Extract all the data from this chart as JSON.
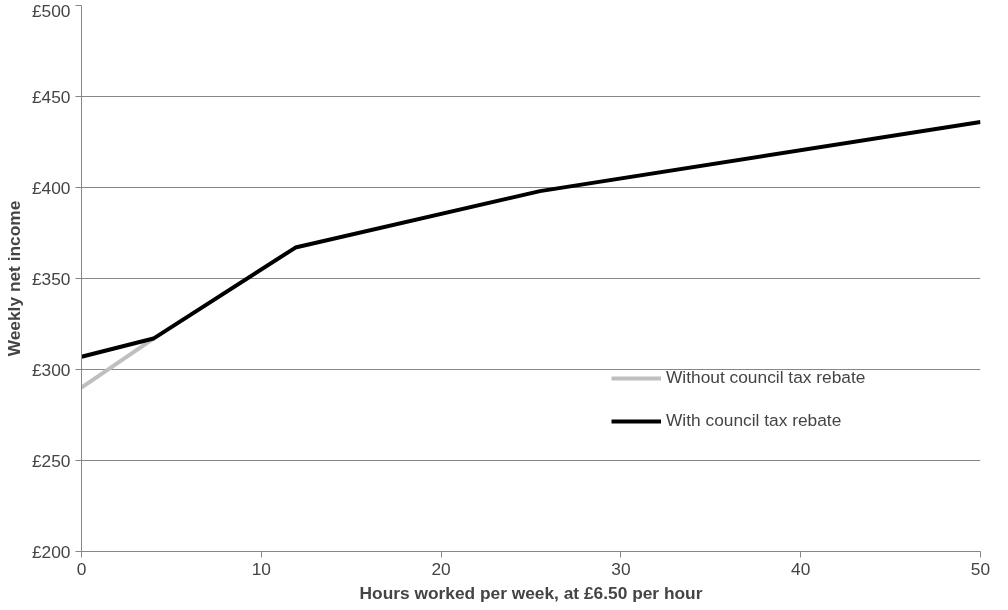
{
  "chart_data": {
    "type": "line",
    "xlabel": "Hours worked per week, at £6.50 per hour",
    "ylabel": "Weekly net income",
    "x": [
      0,
      4,
      11.9,
      25.5,
      50
    ],
    "series": [
      {
        "name": "Without council tax rebate",
        "color": "#bfbfbf",
        "x": [
          0,
          4
        ],
        "values": [
          290,
          317
        ]
      },
      {
        "name": "With council tax rebate",
        "color": "#000000",
        "values": [
          307,
          317,
          367,
          398,
          436
        ]
      }
    ],
    "xlim": [
      0,
      50
    ],
    "xticks": [
      0,
      10,
      20,
      30,
      40,
      50
    ],
    "ylim": [
      200,
      500
    ],
    "yticks": [
      {
        "value": 200,
        "label": "£200"
      },
      {
        "value": 250,
        "label": "£250"
      },
      {
        "value": 300,
        "label": "£300"
      },
      {
        "value": 350,
        "label": "£350"
      },
      {
        "value": 400,
        "label": "£400"
      },
      {
        "value": 450,
        "label": "£450"
      },
      {
        "value": 500,
        "label": "£500"
      }
    ],
    "grid": "y",
    "legend": "right",
    "marker": "none",
    "line_style": "solid"
  }
}
